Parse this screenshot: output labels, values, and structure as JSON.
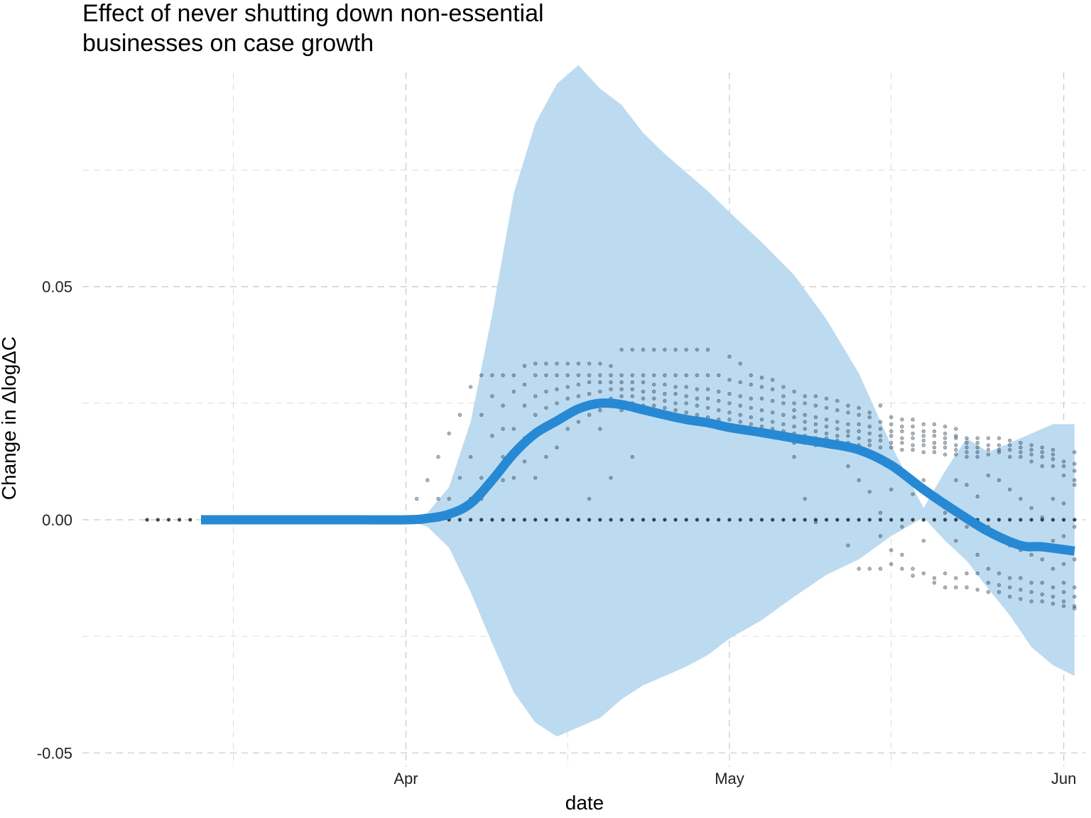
{
  "chart_data": {
    "type": "line",
    "title": "Effect of never shutting down non-essential businesses on case growth",
    "title_lines": [
      "Effect of never shutting down non-essential",
      "businesses on case growth"
    ],
    "xlabel": "date",
    "ylabel": "Change in ΔlogΔC",
    "x_tick_labels": [
      {
        "date": "2020-04-01",
        "label": "Apr"
      },
      {
        "date": "2020-05-01",
        "label": "May"
      },
      {
        "date": "2020-06-01",
        "label": "Jun"
      }
    ],
    "x_minor_ticks": [
      "2020-03-16",
      "2020-04-16",
      "2020-05-16"
    ],
    "y_tick_labels": [
      {
        "value": -0.05,
        "label": "-0.05"
      },
      {
        "value": 0.0,
        "label": "0.00"
      },
      {
        "value": 0.05,
        "label": "0.05"
      }
    ],
    "y_minor_ticks": [
      -0.025,
      0.025,
      0.075
    ],
    "xlim": [
      "2020-03-02",
      "2020-06-03"
    ],
    "ylim": [
      -0.053,
      0.099
    ],
    "grid": true,
    "colors": {
      "line": "#2789d4",
      "band": "#bcdbf1",
      "points": "#1a2a38"
    },
    "line": {
      "x": [
        "2020-03-13",
        "2020-03-20",
        "2020-03-27",
        "2020-04-01",
        "2020-04-03",
        "2020-04-05",
        "2020-04-07",
        "2020-04-09",
        "2020-04-11",
        "2020-04-13",
        "2020-04-15",
        "2020-04-17",
        "2020-04-19",
        "2020-04-21",
        "2020-04-23",
        "2020-04-25",
        "2020-04-27",
        "2020-04-29",
        "2020-05-01",
        "2020-05-04",
        "2020-05-07",
        "2020-05-10",
        "2020-05-13",
        "2020-05-16",
        "2020-05-19",
        "2020-05-22",
        "2020-05-25",
        "2020-05-28",
        "2020-05-30",
        "2020-06-02"
      ],
      "y": [
        0.0,
        0.0,
        0.0,
        0.0,
        0.0003,
        0.0012,
        0.0035,
        0.0085,
        0.0142,
        0.0185,
        0.0212,
        0.0238,
        0.025,
        0.0247,
        0.0236,
        0.0225,
        0.0215,
        0.0208,
        0.0198,
        0.0187,
        0.0175,
        0.0164,
        0.015,
        0.0117,
        0.0065,
        0.0018,
        -0.0025,
        -0.0055,
        -0.0058,
        -0.0067
      ]
    },
    "band": {
      "x": [
        "2020-04-01",
        "2020-04-03",
        "2020-04-05",
        "2020-04-07",
        "2020-04-09",
        "2020-04-11",
        "2020-04-13",
        "2020-04-15",
        "2020-04-17",
        "2020-04-19",
        "2020-04-21",
        "2020-04-23",
        "2020-04-25",
        "2020-04-27",
        "2020-04-29",
        "2020-05-01",
        "2020-05-04",
        "2020-05-07",
        "2020-05-10",
        "2020-05-13",
        "2020-05-16",
        "2020-05-19",
        "2020-05-21",
        "2020-05-23",
        "2020-05-25",
        "2020-05-27",
        "2020-05-29",
        "2020-05-31",
        "2020-06-02"
      ],
      "upper": [
        0.0,
        0.0015,
        0.007,
        0.021,
        0.044,
        0.07,
        0.085,
        0.0935,
        0.0975,
        0.0925,
        0.089,
        0.083,
        0.0785,
        0.0745,
        0.0705,
        0.066,
        0.0595,
        0.0525,
        0.043,
        0.0314,
        0.016,
        0.0025,
        0.0105,
        0.0175,
        0.0145,
        0.0165,
        0.0185,
        0.0205,
        0.0205
      ],
      "lower": [
        0.0,
        -0.0015,
        -0.006,
        -0.0155,
        -0.0265,
        -0.037,
        -0.0435,
        -0.0465,
        -0.0445,
        -0.0425,
        -0.0385,
        -0.0355,
        -0.0335,
        -0.0315,
        -0.029,
        -0.0255,
        -0.0215,
        -0.0165,
        -0.0118,
        -0.0085,
        -0.0035,
        0.0005,
        -0.0045,
        -0.0088,
        -0.0148,
        -0.0205,
        -0.0273,
        -0.0312,
        -0.0335
      ]
    },
    "scatter": {
      "note_count_per_column": "dots scattered around the fitted line",
      "columns": [
        {
          "date": "2020-03-08",
          "values": [
            0.0
          ]
        },
        {
          "date": "2020-03-09",
          "values": [
            0.0
          ]
        },
        {
          "date": "2020-03-10",
          "values": [
            0.0
          ]
        },
        {
          "date": "2020-03-11",
          "values": [
            0.0
          ]
        },
        {
          "date": "2020-03-12",
          "values": [
            0.0
          ]
        },
        {
          "date": "2020-04-02",
          "values": [
            0.0,
            0.0045
          ]
        },
        {
          "date": "2020-04-03",
          "values": [
            0.0,
            0.0085
          ]
        },
        {
          "date": "2020-04-04",
          "values": [
            0.0,
            0.0135,
            0.0045
          ]
        },
        {
          "date": "2020-04-05",
          "values": [
            0.0,
            0.0185,
            0.0045
          ]
        },
        {
          "date": "2020-04-06",
          "values": [
            0.0,
            0.0225,
            0.009
          ]
        },
        {
          "date": "2020-04-07",
          "values": [
            0.0,
            0.0285,
            0.0135,
            0.0045
          ]
        },
        {
          "date": "2020-04-08",
          "values": [
            0.0,
            0.031,
            0.0225,
            0.009,
            0.0045
          ]
        },
        {
          "date": "2020-04-09",
          "values": [
            0.0,
            0.031,
            0.0265,
            0.018,
            0.009
          ]
        },
        {
          "date": "2020-04-10",
          "values": [
            0.0,
            0.031,
            0.0245,
            0.0195,
            0.0135,
            0.0085
          ]
        },
        {
          "date": "2020-04-11",
          "values": [
            0.0,
            0.031,
            0.0275,
            0.0195,
            0.0145,
            0.009
          ]
        },
        {
          "date": "2020-04-12",
          "values": [
            0.0,
            0.033,
            0.029,
            0.0245,
            0.0175,
            0.0125
          ]
        },
        {
          "date": "2020-04-13",
          "values": [
            0.0,
            0.0335,
            0.031,
            0.0265,
            0.0225,
            0.018,
            0.009
          ]
        },
        {
          "date": "2020-04-14",
          "values": [
            0.0,
            0.0335,
            0.031,
            0.0275,
            0.024,
            0.0195,
            0.0135
          ]
        },
        {
          "date": "2020-04-15",
          "values": [
            0.0,
            0.0335,
            0.031,
            0.028,
            0.025,
            0.0215,
            0.0155
          ]
        },
        {
          "date": "2020-04-16",
          "values": [
            0.0,
            0.0335,
            0.031,
            0.0285,
            0.026,
            0.023,
            0.0195
          ]
        },
        {
          "date": "2020-04-17",
          "values": [
            0.0,
            0.0335,
            0.031,
            0.029,
            0.0265,
            0.024,
            0.021
          ]
        },
        {
          "date": "2020-04-18",
          "values": [
            0.0,
            0.0335,
            0.031,
            0.0295,
            0.027,
            0.025,
            0.0225,
            0.0045
          ]
        },
        {
          "date": "2020-04-19",
          "values": [
            0.0,
            0.0335,
            0.031,
            0.0295,
            0.0275,
            0.0255,
            0.0235,
            0.0195
          ]
        },
        {
          "date": "2020-04-20",
          "values": [
            0.0,
            0.033,
            0.031,
            0.0295,
            0.028,
            0.026,
            0.0245,
            0.009
          ]
        },
        {
          "date": "2020-04-21",
          "values": [
            0.0,
            0.0365,
            0.031,
            0.0295,
            0.028,
            0.0265,
            0.025,
            0.0235
          ]
        },
        {
          "date": "2020-04-22",
          "values": [
            0.0,
            0.0365,
            0.031,
            0.0295,
            0.028,
            0.0265,
            0.025,
            0.0135
          ]
        },
        {
          "date": "2020-04-23",
          "values": [
            0.0,
            0.0365,
            0.031,
            0.0295,
            0.0275,
            0.026,
            0.0245,
            0.023
          ]
        },
        {
          "date": "2020-04-24",
          "values": [
            0.0,
            0.0365,
            0.031,
            0.029,
            0.0275,
            0.026,
            0.0245,
            0.023
          ]
        },
        {
          "date": "2020-04-25",
          "values": [
            0.0,
            0.0365,
            0.031,
            0.029,
            0.027,
            0.0255,
            0.024,
            0.0225
          ]
        },
        {
          "date": "2020-04-26",
          "values": [
            0.0,
            0.0365,
            0.031,
            0.0285,
            0.027,
            0.025,
            0.0235,
            0.022
          ]
        },
        {
          "date": "2020-04-27",
          "values": [
            0.0,
            0.0365,
            0.031,
            0.0285,
            0.0265,
            0.025,
            0.023,
            0.0215
          ]
        },
        {
          "date": "2020-04-28",
          "values": [
            0.0,
            0.0365,
            0.031,
            0.028,
            0.026,
            0.0245,
            0.0225,
            0.021
          ]
        },
        {
          "date": "2020-04-29",
          "values": [
            0.0,
            0.0365,
            0.031,
            0.028,
            0.026,
            0.024,
            0.022,
            0.0205
          ]
        },
        {
          "date": "2020-04-30",
          "values": [
            0.0,
            0.031,
            0.0275,
            0.0255,
            0.0235,
            0.0215,
            0.02
          ]
        },
        {
          "date": "2020-05-01",
          "values": [
            0.0,
            0.035,
            0.03,
            0.027,
            0.025,
            0.023,
            0.0215,
            0.0195
          ]
        },
        {
          "date": "2020-05-02",
          "values": [
            0.0,
            0.0335,
            0.0295,
            0.0265,
            0.0245,
            0.0225,
            0.021,
            0.019
          ]
        },
        {
          "date": "2020-05-03",
          "values": [
            0.0,
            0.031,
            0.029,
            0.026,
            0.024,
            0.022,
            0.0205,
            0.019
          ]
        },
        {
          "date": "2020-05-04",
          "values": [
            0.0,
            0.0305,
            0.0285,
            0.026,
            0.0235,
            0.0215,
            0.02,
            0.0185
          ]
        },
        {
          "date": "2020-05-05",
          "values": [
            0.0,
            0.03,
            0.028,
            0.0255,
            0.023,
            0.021,
            0.0195,
            0.018
          ]
        },
        {
          "date": "2020-05-06",
          "values": [
            0.0,
            0.0285,
            0.0265,
            0.025,
            0.0225,
            0.0205,
            0.019,
            0.0175
          ]
        },
        {
          "date": "2020-05-07",
          "values": [
            0.0,
            0.0275,
            0.025,
            0.0235,
            0.022,
            0.02,
            0.0185,
            0.0165,
            0.0135
          ]
        },
        {
          "date": "2020-05-08",
          "values": [
            0.0,
            0.0265,
            0.025,
            0.0225,
            0.021,
            0.0195,
            0.018,
            0.0165,
            0.0045
          ]
        },
        {
          "date": "2020-05-09",
          "values": [
            0.0,
            0.0265,
            0.0245,
            0.022,
            0.0205,
            0.019,
            0.0175,
            0.016,
            -0.0005
          ]
        },
        {
          "date": "2020-05-10",
          "values": [
            0.0,
            0.026,
            0.024,
            0.0215,
            0.02,
            0.0185,
            0.0175,
            0.016
          ]
        },
        {
          "date": "2020-05-11",
          "values": [
            0.0,
            0.0255,
            0.0235,
            0.021,
            0.0195,
            0.018,
            0.017,
            0.0155
          ]
        },
        {
          "date": "2020-05-12",
          "values": [
            0.0,
            0.0245,
            0.023,
            0.0205,
            0.019,
            0.018,
            0.0165,
            0.0115,
            -0.0055
          ]
        },
        {
          "date": "2020-05-13",
          "values": [
            0.0,
            0.024,
            0.0225,
            0.0205,
            0.019,
            0.0175,
            0.016,
            0.0085,
            -0.0105
          ]
        },
        {
          "date": "2020-05-14",
          "values": [
            0.0,
            0.023,
            0.022,
            0.02,
            0.0185,
            0.017,
            0.016,
            0.0135,
            0.006,
            -0.0105
          ]
        },
        {
          "date": "2020-05-15",
          "values": [
            0.0,
            0.0245,
            0.021,
            0.0195,
            0.018,
            0.017,
            0.0155,
            0.0015,
            -0.0035,
            -0.0105
          ]
        },
        {
          "date": "2020-05-16",
          "values": [
            0.0,
            0.022,
            0.0205,
            0.019,
            0.018,
            0.0165,
            0.0155,
            0.0065,
            -0.0065,
            -0.0095
          ]
        },
        {
          "date": "2020-05-17",
          "values": [
            0.0,
            0.0215,
            0.02,
            0.019,
            0.0175,
            0.0165,
            0.015,
            -0.0015,
            -0.0075,
            -0.0105
          ]
        },
        {
          "date": "2020-05-18",
          "values": [
            0.0,
            0.0215,
            0.02,
            0.0185,
            0.0175,
            0.016,
            0.015,
            0.0055,
            -0.0105,
            -0.012
          ]
        },
        {
          "date": "2020-05-19",
          "values": [
            0.0,
            0.0205,
            0.019,
            0.018,
            0.017,
            0.016,
            0.0145,
            0.0085,
            -0.0045,
            -0.0115
          ]
        },
        {
          "date": "2020-05-20",
          "values": [
            0.0,
            0.0205,
            0.019,
            0.018,
            0.0165,
            0.0155,
            0.0145,
            0.0045,
            -0.0125,
            -0.0135
          ]
        },
        {
          "date": "2020-05-21",
          "values": [
            0.0,
            0.02,
            0.0185,
            0.0175,
            0.0165,
            0.0155,
            0.014,
            0.0015,
            -0.0115,
            -0.0145
          ]
        },
        {
          "date": "2020-05-22",
          "values": [
            0.0,
            0.0195,
            0.018,
            0.0175,
            0.016,
            0.015,
            0.014,
            0.0085,
            -0.0045,
            -0.0125,
            -0.0145
          ]
        },
        {
          "date": "2020-05-23",
          "values": [
            0.0,
            0.0175,
            0.0165,
            0.0155,
            0.0145,
            0.0135,
            0.0075,
            -0.0015,
            -0.0115,
            -0.0145
          ]
        },
        {
          "date": "2020-05-24",
          "values": [
            0.0,
            0.0175,
            0.0165,
            0.0155,
            0.0145,
            0.0135,
            0.005,
            -0.0075,
            -0.0115,
            -0.015
          ]
        },
        {
          "date": "2020-05-25",
          "values": [
            0.0,
            0.0175,
            0.016,
            0.015,
            0.014,
            0.0095,
            -0.0015,
            -0.0105,
            -0.0135,
            -0.0155
          ]
        },
        {
          "date": "2020-05-26",
          "values": [
            0.0,
            0.0175,
            0.016,
            0.015,
            0.0145,
            0.0085,
            -0.0035,
            -0.0115,
            -0.014,
            -0.0155
          ]
        },
        {
          "date": "2020-05-27",
          "values": [
            0.0,
            0.017,
            0.016,
            0.015,
            0.0135,
            0.0065,
            -0.0055,
            -0.0125,
            -0.0145,
            -0.0165
          ]
        },
        {
          "date": "2020-05-28",
          "values": [
            0.0,
            0.0165,
            0.0155,
            0.0145,
            0.0135,
            0.0045,
            -0.0065,
            -0.0125,
            -0.015,
            -0.017
          ]
        },
        {
          "date": "2020-05-29",
          "values": [
            0.0,
            0.016,
            0.015,
            0.014,
            0.0125,
            0.0025,
            -0.0075,
            -0.0135,
            -0.0155,
            -0.0175
          ]
        },
        {
          "date": "2020-05-30",
          "values": [
            0.0,
            0.0155,
            0.0145,
            0.0135,
            0.0115,
            0.0005,
            -0.0085,
            -0.0135,
            -0.016,
            -0.0175
          ]
        },
        {
          "date": "2020-05-31",
          "values": [
            0.0,
            0.015,
            0.014,
            0.013,
            0.0115,
            0.0045,
            -0.0045,
            -0.0105,
            -0.0145,
            -0.0165,
            -0.018
          ]
        },
        {
          "date": "2020-06-01",
          "values": [
            0.0,
            0.0125,
            0.0115,
            0.0095,
            0.0035,
            -0.0035,
            -0.0095,
            -0.0135,
            -0.0155,
            -0.0175,
            -0.0185
          ]
        },
        {
          "date": "2020-06-02",
          "values": [
            0.0,
            0.0145,
            0.012,
            0.0105,
            0.0085,
            0.0075,
            -0.0015,
            -0.0085,
            -0.0145,
            -0.0165,
            -0.0185,
            -0.019
          ]
        }
      ]
    }
  }
}
